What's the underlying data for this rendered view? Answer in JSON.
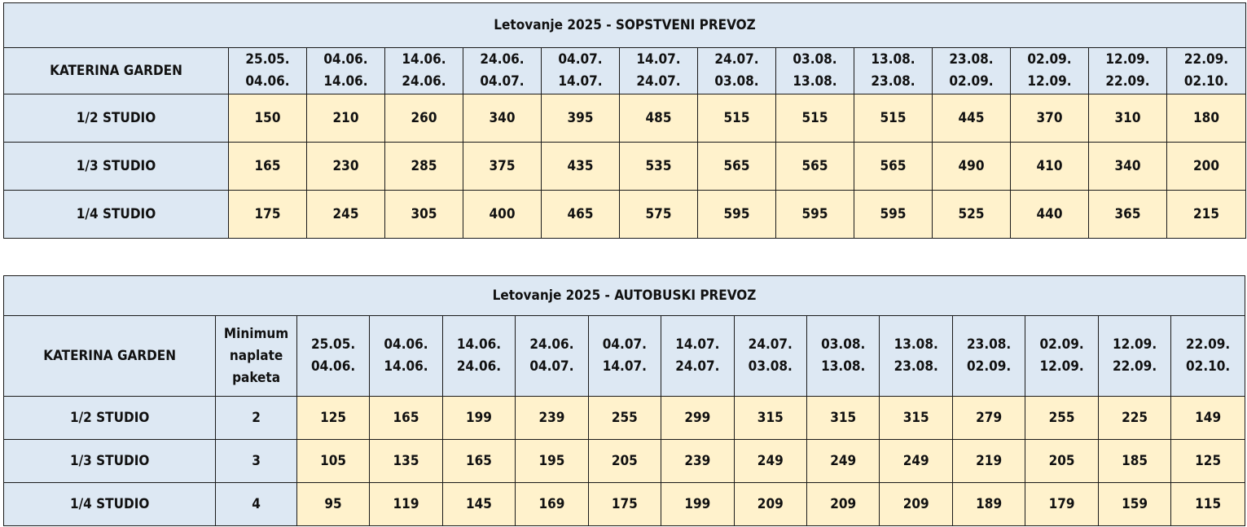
{
  "colors": {
    "header_bg": "#dde8f3",
    "price_bg": "#fff2cc",
    "border": "#1a1a1a"
  },
  "tables": [
    {
      "title": "Letovanje 2025 - SOPSTVENI PREVOZ",
      "hotel": "KATERINA GARDEN",
      "periods": [
        [
          "25.05.",
          "04.06."
        ],
        [
          "04.06.",
          "14.06."
        ],
        [
          "14.06.",
          "24.06."
        ],
        [
          "24.06.",
          "04.07."
        ],
        [
          "04.07.",
          "14.07."
        ],
        [
          "14.07.",
          "24.07."
        ],
        [
          "24.07.",
          "03.08."
        ],
        [
          "03.08.",
          "13.08."
        ],
        [
          "13.08.",
          "23.08."
        ],
        [
          "23.08.",
          "02.09."
        ],
        [
          "02.09.",
          "12.09."
        ],
        [
          "12.09.",
          "22.09."
        ],
        [
          "22.09.",
          "02.10."
        ]
      ],
      "rows": [
        {
          "room": "1/2 STUDIO",
          "prices": [
            "150",
            "210",
            "260",
            "340",
            "395",
            "485",
            "515",
            "515",
            "515",
            "445",
            "370",
            "310",
            "180"
          ]
        },
        {
          "room": "1/3 STUDIO",
          "prices": [
            "165",
            "230",
            "285",
            "375",
            "435",
            "535",
            "565",
            "565",
            "565",
            "490",
            "410",
            "340",
            "200"
          ]
        },
        {
          "room": "1/4 STUDIO",
          "prices": [
            "175",
            "245",
            "305",
            "400",
            "465",
            "575",
            "595",
            "595",
            "595",
            "525",
            "440",
            "365",
            "215"
          ]
        }
      ]
    },
    {
      "title": "Letovanje 2025 - AUTOBUSKI PREVOZ",
      "hotel": "KATERINA GARDEN",
      "min_header": [
        "Minimum",
        "naplate",
        "paketa"
      ],
      "periods": [
        [
          "25.05.",
          "04.06."
        ],
        [
          "04.06.",
          "14.06."
        ],
        [
          "14.06.",
          "24.06."
        ],
        [
          "24.06.",
          "04.07."
        ],
        [
          "04.07.",
          "14.07."
        ],
        [
          "14.07.",
          "24.07."
        ],
        [
          "24.07.",
          "03.08."
        ],
        [
          "03.08.",
          "13.08."
        ],
        [
          "13.08.",
          "23.08."
        ],
        [
          "23.08.",
          "02.09."
        ],
        [
          "02.09.",
          "12.09."
        ],
        [
          "12.09.",
          "22.09."
        ],
        [
          "22.09.",
          "02.10."
        ]
      ],
      "rows": [
        {
          "room": "1/2 STUDIO",
          "min": "2",
          "prices": [
            "125",
            "165",
            "199",
            "239",
            "255",
            "299",
            "315",
            "315",
            "315",
            "279",
            "255",
            "225",
            "149"
          ]
        },
        {
          "room": "1/3 STUDIO",
          "min": "3",
          "prices": [
            "105",
            "135",
            "165",
            "195",
            "205",
            "239",
            "249",
            "249",
            "249",
            "219",
            "205",
            "185",
            "125"
          ]
        },
        {
          "room": "1/4 STUDIO",
          "min": "4",
          "prices": [
            "95",
            "119",
            "145",
            "169",
            "175",
            "199",
            "209",
            "209",
            "209",
            "189",
            "179",
            "159",
            "115"
          ]
        }
      ]
    }
  ]
}
